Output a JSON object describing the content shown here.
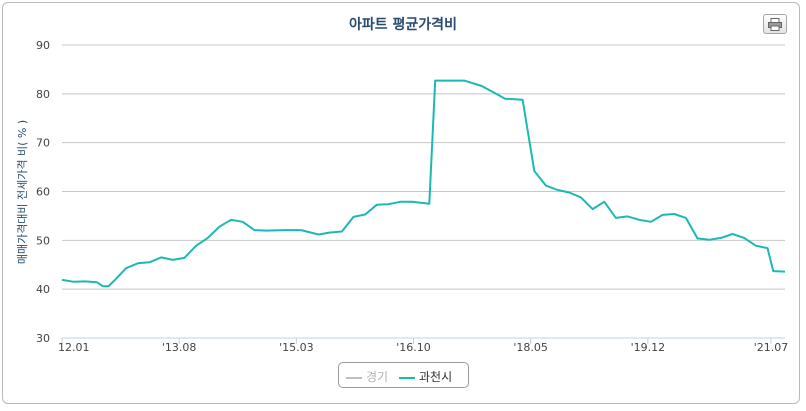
{
  "chart_data": {
    "type": "line",
    "title": "아파트 평균가격비",
    "ylabel": "매매가격대비 전세가격 비( % )",
    "xlabel": "",
    "ylim": [
      30,
      90
    ],
    "yticks": [
      30,
      40,
      50,
      60,
      70,
      80,
      90
    ],
    "x_tick_labels": [
      "12.01",
      "'13.08",
      "'15.03",
      "'16.10",
      "'18.05",
      "'19.12",
      "'21.07"
    ],
    "grid": true,
    "legend_position": "bottom",
    "series": [
      {
        "name": "경기",
        "color": "#c0c0c0",
        "visible": false,
        "points": []
      },
      {
        "name": "과천시",
        "color": "#1bb9b5",
        "visible": true,
        "points": [
          [
            "2012.01",
            41.9
          ],
          [
            "2012.03",
            41.5
          ],
          [
            "2012.05",
            41.6
          ],
          [
            "2012.07",
            41.4
          ],
          [
            "2012.08",
            40.6
          ],
          [
            "2012.09",
            40.6
          ],
          [
            "2012.10",
            41.8
          ],
          [
            "2012.12",
            44.3
          ],
          [
            "2013.02",
            45.3
          ],
          [
            "2013.04",
            45.5
          ],
          [
            "2013.06",
            46.5
          ],
          [
            "2013.08",
            46.0
          ],
          [
            "2013.10",
            46.4
          ],
          [
            "2013.12",
            48.9
          ],
          [
            "2014.02",
            50.5
          ],
          [
            "2014.04",
            52.8
          ],
          [
            "2014.06",
            54.2
          ],
          [
            "2014.08",
            53.8
          ],
          [
            "2014.10",
            52.1
          ],
          [
            "2014.12",
            52.0
          ],
          [
            "2015.03",
            52.1
          ],
          [
            "2015.06",
            52.1
          ],
          [
            "2015.09",
            51.2
          ],
          [
            "2015.11",
            51.6
          ],
          [
            "2016.01",
            51.8
          ],
          [
            "2016.03",
            54.8
          ],
          [
            "2016.05",
            55.3
          ],
          [
            "2016.07",
            57.3
          ],
          [
            "2016.09",
            57.4
          ],
          [
            "2016.11",
            57.9
          ],
          [
            "2017.01",
            57.9
          ],
          [
            "2017.04",
            57.5
          ],
          [
            "2017.05",
            82.7
          ],
          [
            "2017.07",
            82.7
          ],
          [
            "2017.10",
            82.7
          ],
          [
            "2018.01",
            81.6
          ],
          [
            "2018.03",
            80.3
          ],
          [
            "2018.05",
            79.0
          ],
          [
            "2018.08",
            78.8
          ],
          [
            "2018.10",
            64.2
          ],
          [
            "2018.12",
            61.2
          ],
          [
            "2019.02",
            60.3
          ],
          [
            "2019.04",
            59.8
          ],
          [
            "2019.06",
            58.8
          ],
          [
            "2019.08",
            56.4
          ],
          [
            "2019.10",
            57.9
          ],
          [
            "2019.12",
            54.6
          ],
          [
            "2020.02",
            54.9
          ],
          [
            "2020.04",
            54.2
          ],
          [
            "2020.06",
            53.8
          ],
          [
            "2020.08",
            55.2
          ],
          [
            "2020.10",
            55.4
          ],
          [
            "2020.12",
            54.6
          ],
          [
            "2021.02",
            50.4
          ],
          [
            "2021.04",
            50.1
          ],
          [
            "2021.06",
            50.5
          ],
          [
            "2021.08",
            51.3
          ],
          [
            "2021.10",
            50.5
          ],
          [
            "2021.12",
            48.9
          ],
          [
            "2022.02",
            48.4
          ],
          [
            "2022.03",
            43.7
          ],
          [
            "2022.05",
            43.6
          ]
        ]
      }
    ]
  }
}
